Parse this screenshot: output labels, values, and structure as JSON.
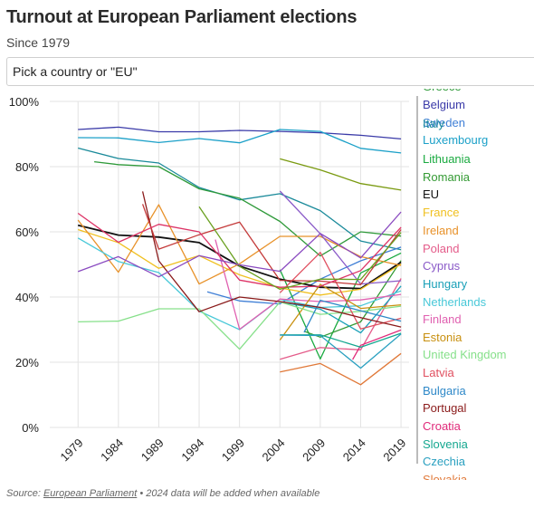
{
  "header": {
    "title": "Turnout at European Parliament elections",
    "subtitle": "Since 1979"
  },
  "picker": {
    "placeholder": "Pick a country or \"EU\""
  },
  "source": {
    "prefix": "Source: ",
    "link": "European Parliament",
    "suffix": " • 2024 data will be added when available"
  },
  "chart_data": {
    "type": "line",
    "title": "Turnout at European Parliament elections",
    "subtitle": "Since 1979",
    "x": [
      1979,
      1984,
      1989,
      1994,
      1999,
      2004,
      2009,
      2014,
      2019
    ],
    "x_ticks": [
      "1979",
      "1984",
      "1989",
      "1994",
      "1999",
      "2004",
      "2009",
      "2014",
      "2019"
    ],
    "y_ticks": [
      "0%",
      "20%",
      "40%",
      "60%",
      "80%",
      "100%"
    ],
    "ylim": [
      0,
      100
    ],
    "grid": true,
    "legend_placement": "right",
    "legend": [
      "Greece",
      "Belgium",
      "Sweden",
      "Italy",
      "Luxembourg",
      "Lithuania",
      "Romania",
      "EU",
      "France",
      "Ireland",
      "Poland",
      "Cyprus",
      "Hungary",
      "Netherlands",
      "Finland",
      "Estonia",
      "United Kingdom",
      "Latvia",
      "Bulgaria",
      "Portugal",
      "Croatia",
      "Slovenia",
      "Czechia",
      "Slovakia"
    ],
    "series": [
      {
        "name": "Belgium",
        "color": "#3a3aa8",
        "x": [
          1979,
          1984,
          1989,
          1994,
          1999,
          2004,
          2009,
          2014,
          2019
        ],
        "values": [
          91.4,
          92.1,
          90.7,
          90.7,
          91.1,
          90.8,
          90.4,
          89.6,
          88.5
        ]
      },
      {
        "name": "Luxembourg",
        "color": "#1ba0c8",
        "x": [
          1979,
          1984,
          1989,
          1994,
          1999,
          2004,
          2009,
          2014,
          2019
        ],
        "values": [
          88.9,
          88.8,
          87.4,
          88.6,
          87.3,
          91.4,
          90.8,
          85.6,
          84.2
        ]
      },
      {
        "name": "Italy",
        "color": "#1a8a9a",
        "x": [
          1979,
          1984,
          1989,
          1994,
          1999,
          2004,
          2009,
          2014,
          2019
        ],
        "values": [
          85.7,
          82.5,
          81.1,
          73.6,
          69.8,
          71.7,
          66.5,
          57.2,
          54.5
        ]
      },
      {
        "name": "Greece",
        "color": "#2f9a3a",
        "x": [
          1981,
          1984,
          1989,
          1994,
          1999,
          2004,
          2009,
          2014,
          2019
        ],
        "values": [
          81.5,
          80.6,
          80.0,
          73.2,
          70.3,
          63.2,
          52.6,
          60.0,
          58.7
        ]
      },
      {
        "name": "Sweden",
        "color": "#3f7fd6",
        "x": [
          1995,
          1999,
          2004,
          2009,
          2014,
          2019
        ],
        "values": [
          41.6,
          38.8,
          37.9,
          45.5,
          51.1,
          55.3
        ]
      },
      {
        "name": "Lithuania",
        "color": "#1aaa40",
        "x": [
          2004,
          2009,
          2014,
          2019
        ],
        "values": [
          48.4,
          21.0,
          47.4,
          53.5
        ]
      },
      {
        "name": "Romania",
        "color": "#339a33",
        "x": [
          2007,
          2009,
          2014,
          2019
        ],
        "values": [
          29.5,
          27.7,
          32.4,
          51.2
        ]
      },
      {
        "name": "EU",
        "color": "#111111",
        "x": [
          1979,
          1984,
          1989,
          1994,
          1999,
          2004,
          2009,
          2014,
          2019
        ],
        "values": [
          62.0,
          59.0,
          58.4,
          56.7,
          49.5,
          45.5,
          43.0,
          42.6,
          50.7
        ]
      },
      {
        "name": "France",
        "color": "#f0c020",
        "x": [
          1979,
          1984,
          1989,
          1994,
          1999,
          2004,
          2009,
          2014,
          2019
        ],
        "values": [
          60.7,
          56.7,
          48.8,
          52.7,
          46.8,
          42.8,
          40.6,
          42.4,
          50.1
        ]
      },
      {
        "name": "Ireland",
        "color": "#e8922a",
        "x": [
          1979,
          1984,
          1989,
          1994,
          1999,
          2004,
          2009,
          2014,
          2019
        ],
        "values": [
          63.6,
          47.6,
          68.3,
          44.0,
          50.2,
          58.6,
          58.6,
          52.4,
          49.7
        ]
      },
      {
        "name": "Poland",
        "color": "#e45c8a",
        "x": [
          2004,
          2009,
          2014,
          2019
        ],
        "values": [
          20.9,
          24.5,
          23.8,
          45.7
        ]
      },
      {
        "name": "Cyprus",
        "color": "#8a5ac8",
        "x": [
          2004,
          2009,
          2014,
          2019
        ],
        "values": [
          72.5,
          59.4,
          44.0,
          45.0
        ]
      },
      {
        "name": "Hungary",
        "color": "#1aa0b8",
        "x": [
          2004,
          2009,
          2014,
          2019
        ],
        "values": [
          38.5,
          36.3,
          29.0,
          43.4
        ]
      },
      {
        "name": "Netherlands",
        "color": "#48c8d8",
        "x": [
          1979,
          1984,
          1989,
          1994,
          1999,
          2004,
          2009,
          2014,
          2019
        ],
        "values": [
          58.1,
          50.9,
          47.5,
          35.7,
          30.0,
          39.3,
          36.8,
          37.3,
          41.9
        ]
      },
      {
        "name": "Finland",
        "color": "#e060b0",
        "x": [
          1996,
          1999,
          2004,
          2009,
          2014,
          2019
        ],
        "values": [
          57.6,
          30.1,
          39.4,
          38.6,
          39.1,
          40.8
        ]
      },
      {
        "name": "Estonia",
        "color": "#c89010",
        "x": [
          2004,
          2009,
          2014,
          2019
        ],
        "values": [
          26.8,
          43.9,
          36.5,
          37.6
        ]
      },
      {
        "name": "United Kingdom",
        "color": "#86e08a",
        "x": [
          1979,
          1984,
          1989,
          1994,
          1999,
          2004,
          2009,
          2014,
          2019
        ],
        "values": [
          32.4,
          32.6,
          36.4,
          36.4,
          24.0,
          38.5,
          34.7,
          35.6,
          37.2
        ]
      },
      {
        "name": "Latvia",
        "color": "#e05060",
        "x": [
          2004,
          2009,
          2014,
          2019
        ],
        "values": [
          41.3,
          53.7,
          30.2,
          33.5
        ]
      },
      {
        "name": "Bulgaria",
        "color": "#2e88c8",
        "x": [
          2007,
          2009,
          2014,
          2019
        ],
        "values": [
          29.2,
          39.0,
          35.8,
          32.6
        ]
      },
      {
        "name": "Portugal",
        "color": "#8a1a1a",
        "x": [
          1987,
          1989,
          1994,
          1999,
          2004,
          2009,
          2014,
          2019
        ],
        "values": [
          72.4,
          51.1,
          35.5,
          40.0,
          38.6,
          36.8,
          33.7,
          30.8
        ]
      },
      {
        "name": "Croatia",
        "color": "#e02a7a",
        "x": [
          2013,
          2014,
          2019
        ],
        "values": [
          20.8,
          25.2,
          29.9
        ]
      },
      {
        "name": "Slovenia",
        "color": "#16a890",
        "x": [
          2004,
          2009,
          2014,
          2019
        ],
        "values": [
          28.4,
          28.4,
          24.6,
          28.9
        ]
      },
      {
        "name": "Czechia",
        "color": "#2aa0c0",
        "x": [
          2004,
          2009,
          2014,
          2019
        ],
        "values": [
          28.3,
          28.2,
          18.2,
          28.7
        ]
      },
      {
        "name": "Slovakia",
        "color": "#e07838",
        "x": [
          2004,
          2009,
          2014,
          2019
        ],
        "values": [
          17.0,
          19.6,
          13.1,
          22.7
        ]
      },
      {
        "name": "",
        "color": "#c43a3a",
        "x": [
          1987,
          1989,
          1994,
          1999,
          2004,
          2009,
          2014,
          2019
        ],
        "values": [
          68.5,
          54.7,
          59.1,
          63.0,
          45.1,
          44.9,
          43.8,
          60.7
        ]
      },
      {
        "name": "",
        "color": "#dd3366",
        "x": [
          1979,
          1984,
          1989,
          1994,
          1999,
          2004,
          2009,
          2014,
          2019
        ],
        "values": [
          65.7,
          56.8,
          62.3,
          60.0,
          45.2,
          43.0,
          43.3,
          48.1,
          61.4
        ]
      },
      {
        "name": "",
        "color": "#6aa020",
        "x": [
          1994,
          1999,
          2004,
          2009,
          2014,
          2019
        ],
        "values": [
          67.7,
          49.4,
          42.4,
          45.5,
          45.4,
          59.8
        ]
      },
      {
        "name": "",
        "color": "#7a9a10",
        "x": [
          2004,
          2009,
          2014,
          2019
        ],
        "values": [
          82.4,
          79.0,
          74.8,
          72.8
        ]
      },
      {
        "name": "",
        "color": "#8a4ac0",
        "x": [
          1979,
          1984,
          1989,
          1994,
          1999,
          2004,
          2009,
          2014,
          2019
        ],
        "values": [
          47.8,
          52.4,
          46.2,
          52.7,
          49.9,
          47.9,
          59.5,
          52.0,
          66.1
        ]
      }
    ]
  }
}
